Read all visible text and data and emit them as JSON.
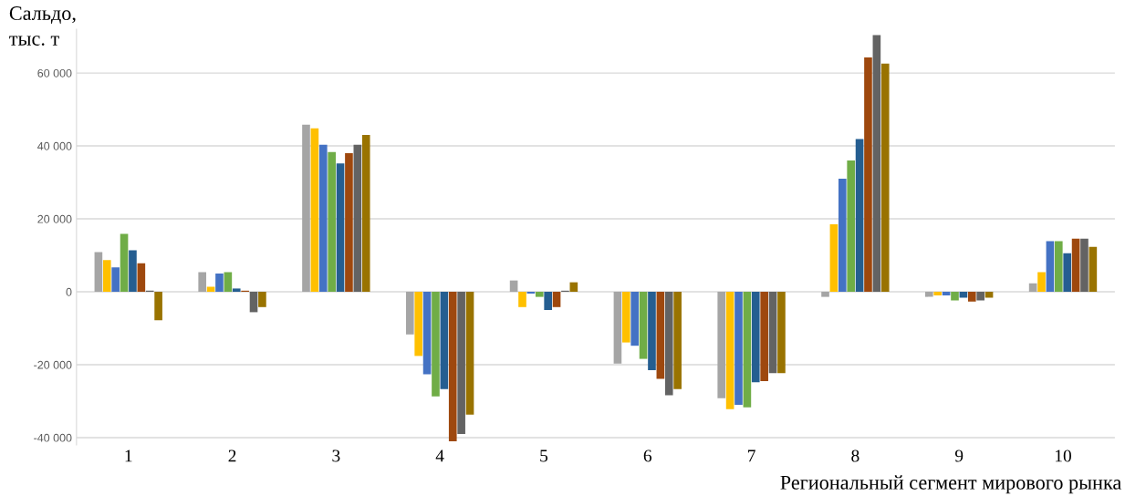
{
  "chart_data": {
    "type": "bar",
    "ylabel": "Сальдо,\nтыс. т",
    "xlabel": "Региональный сегмент мирового рынка",
    "categories": [
      "1",
      "2",
      "3",
      "4",
      "5",
      "6",
      "7",
      "8",
      "9",
      "10"
    ],
    "series": [
      {
        "color": "#a5a5a5",
        "values": [
          10900,
          5400,
          45800,
          -11700,
          3100,
          -19700,
          -29200,
          -1400,
          -1400,
          2300
        ]
      },
      {
        "color": "#ffc000",
        "values": [
          8700,
          1400,
          44800,
          -17600,
          -4200,
          -13900,
          -32200,
          18500,
          -1000,
          5400
        ]
      },
      {
        "color": "#4472c4",
        "values": [
          6700,
          5000,
          40300,
          -22600,
          -500,
          -14800,
          -31000,
          31000,
          -1000,
          13900
        ]
      },
      {
        "color": "#70ad47",
        "values": [
          15900,
          5400,
          38300,
          -28700,
          -1400,
          -18400,
          -31700,
          36000,
          -2400,
          13900
        ]
      },
      {
        "color": "#255e91",
        "values": [
          11400,
          900,
          35200,
          -26700,
          -5000,
          -21500,
          -24800,
          41900,
          -1600,
          10600
        ]
      },
      {
        "color": "#9e480e",
        "values": [
          7800,
          300,
          38000,
          -41000,
          -4200,
          -23900,
          -24500,
          64300,
          -2700,
          14600
        ]
      },
      {
        "color": "#636363",
        "values": [
          300,
          -5600,
          40300,
          -39000,
          300,
          -28400,
          -22300,
          70400,
          -2400,
          14600
        ]
      },
      {
        "color": "#997300",
        "values": [
          -7800,
          -4200,
          43000,
          -33700,
          2600,
          -26700,
          -22300,
          62600,
          -1600,
          12300
        ]
      }
    ],
    "ylim": [
      -42000,
      72000
    ],
    "yticks": [
      {
        "value": -40000,
        "label": "-40 000"
      },
      {
        "value": -20000,
        "label": "-20 000"
      },
      0,
      {
        "value": 20000,
        "label": "20 000"
      },
      {
        "value": 40000,
        "label": "40 000"
      },
      {
        "value": 60000,
        "label": "60 000"
      }
    ],
    "grid": "y"
  }
}
